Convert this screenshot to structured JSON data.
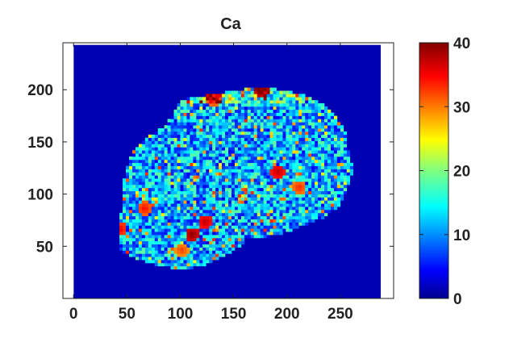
{
  "chart_data": {
    "type": "heatmap",
    "title": "Ca",
    "xlabel": "",
    "ylabel": "",
    "xlim": [
      -10,
      300
    ],
    "ylim": [
      0,
      245
    ],
    "x_ticks": [
      0,
      50,
      100,
      150,
      200,
      250
    ],
    "y_ticks": [
      50,
      100,
      150,
      200
    ],
    "image_extent": {
      "x": [
        0,
        288
      ],
      "y": [
        0,
        243
      ]
    },
    "colorbar": {
      "colormap": "jet",
      "range": [
        0,
        40
      ],
      "ticks": [
        0,
        10,
        20,
        30,
        40
      ]
    },
    "background_value": 2,
    "region_description": "Calcium intensity map of an irregular sample fragment; interior values mostly 8-20 with scattered hot spots above 30",
    "hot_spots": [
      {
        "x": 175,
        "y": 198,
        "value": 38
      },
      {
        "x": 130,
        "y": 190,
        "value": 35
      },
      {
        "x": 110,
        "y": 60,
        "value": 40
      },
      {
        "x": 122,
        "y": 72,
        "value": 38
      },
      {
        "x": 190,
        "y": 120,
        "value": 38
      },
      {
        "x": 42,
        "y": 65,
        "value": 36
      },
      {
        "x": 65,
        "y": 85,
        "value": 35
      },
      {
        "x": 210,
        "y": 105,
        "value": 34
      },
      {
        "x": 100,
        "y": 45,
        "value": 33
      }
    ]
  }
}
